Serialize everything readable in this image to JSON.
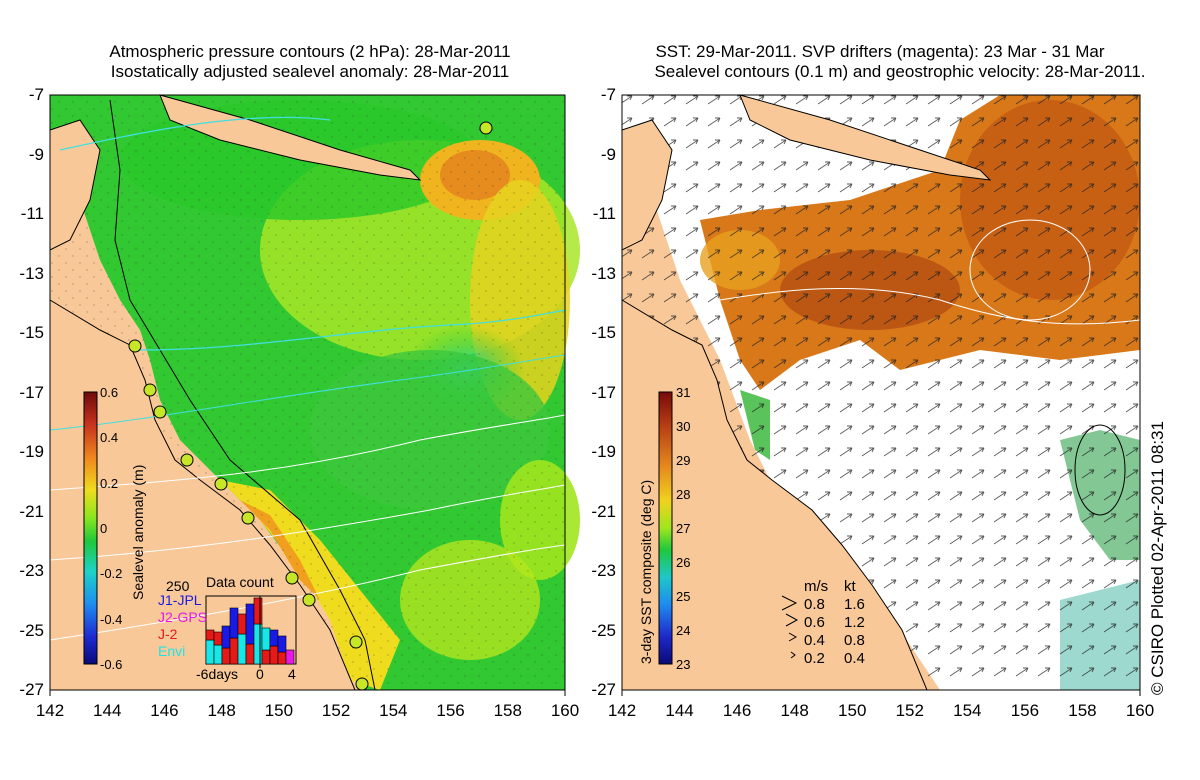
{
  "left_panel": {
    "title_line1": "Atmospheric pressure contours (2 hPa): 28-Mar-2011",
    "title_line2": "Isostatically adjusted sealevel anomaly: 28-Mar-2011",
    "colorbar": {
      "label": "Sealevel anomaly (m)",
      "ticks": [
        "0.6",
        "0.4",
        "0.2",
        "0",
        "-0.2",
        "-0.4",
        "-0.6"
      ]
    },
    "data_count": {
      "title": "Data count",
      "max_label": "250",
      "legend": [
        {
          "label": "J1-JPL",
          "color": "#1a1ae6"
        },
        {
          "label": "J2-GPS",
          "color": "#e619e6"
        },
        {
          "label": "J-2",
          "color": "#e61919"
        },
        {
          "label": "Envi",
          "color": "#19e6e6"
        }
      ],
      "x_labels": [
        "-6days",
        "0",
        "4"
      ]
    }
  },
  "right_panel": {
    "title_line1": "SST: 29-Mar-2011. SVP drifters (magenta): 23 Mar - 31 Mar",
    "title_line2": "Sealevel contours (0.1 m) and geostrophic velocity: 28-Mar-2011.",
    "colorbar": {
      "label": "3-day SST composite (deg C)",
      "ticks": [
        "31",
        "30",
        "29",
        "28",
        "27",
        "26",
        "25",
        "24",
        "23"
      ]
    },
    "velocity_legend": {
      "header_ms": "m/s",
      "header_kt": "kt",
      "rows": [
        {
          "ms": "0.8",
          "kt": "1.6"
        },
        {
          "ms": "0.6",
          "kt": "1.2"
        },
        {
          "ms": "0.4",
          "kt": "0.8"
        },
        {
          "ms": "0.2",
          "kt": "0.4"
        }
      ]
    }
  },
  "axes": {
    "y_ticks": [
      "-7",
      "-9",
      "-11",
      "-13",
      "-15",
      "-17",
      "-19",
      "-21",
      "-23",
      "-25",
      "-27"
    ],
    "x_ticks": [
      "142",
      "144",
      "146",
      "148",
      "150",
      "152",
      "154",
      "156",
      "158",
      "160"
    ]
  },
  "credit": "© CSIRO Plotted 02-Apr-2011 08:31",
  "colors": {
    "land": "#f8c898",
    "sla_low": "#1ec81e",
    "sla_mid": "#a0e61e",
    "sla_high": "#f0b41e"
  }
}
